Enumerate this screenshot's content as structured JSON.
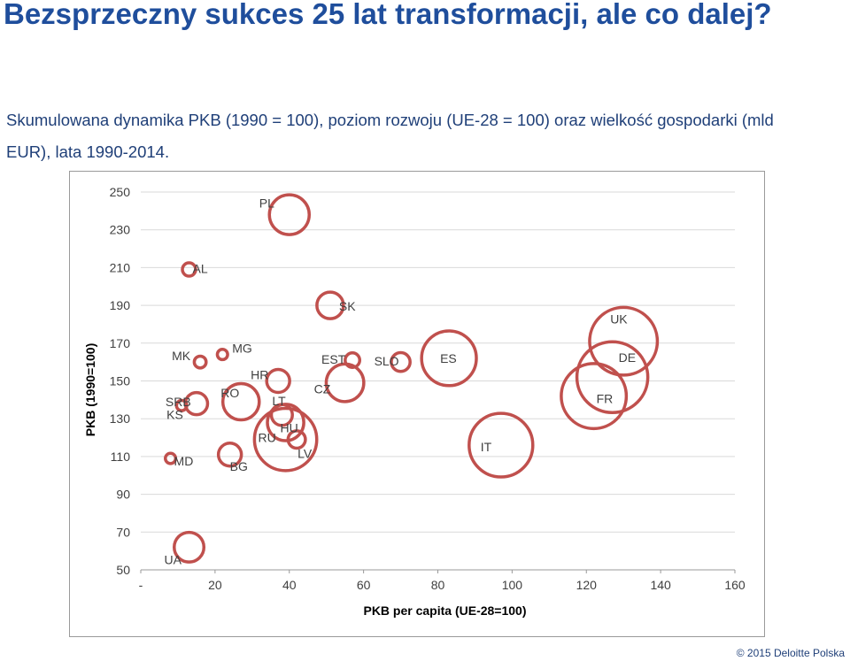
{
  "page": {
    "title": "Bezsprzeczny sukces 25 lat transformacji, ale co dalej?",
    "subtitle": "Skumulowana dynamika PKB (1990 = 100), poziom rozwoju (UE-28 = 100) oraz wielkość gospodarki (mld EUR), lata 1990-2014.",
    "footer": "© 2015 Deloitte Polska"
  },
  "chart_data": {
    "type": "bubble",
    "xlabel": "PKB per capita (UE-28=100)",
    "ylabel": "PKB (1990=100)",
    "xlim": [
      0,
      160
    ],
    "ylim": [
      50,
      250
    ],
    "x_ticks": [
      "-",
      "20",
      "40",
      "60",
      "80",
      "100",
      "120",
      "140",
      "160"
    ],
    "y_ticks": [
      "50",
      "70",
      "90",
      "110",
      "130",
      "150",
      "170",
      "190",
      "210",
      "230",
      "250"
    ],
    "grid": "horizontal",
    "colors": {
      "bubble": "#c0504d",
      "grid": "#d9d9d9",
      "axis": "#999999",
      "text": "#404040"
    },
    "points": [
      {
        "label": "PL",
        "x": 40,
        "y": 238,
        "size": 9.0
      },
      {
        "label": "AL",
        "x": 13,
        "y": 209,
        "size": 1.0
      },
      {
        "label": "SK",
        "x": 51,
        "y": 190,
        "size": 4.0
      },
      {
        "label": "UK",
        "x": 130,
        "y": 171,
        "size": 26.0
      },
      {
        "label": "DE",
        "x": 127,
        "y": 152,
        "size": 28.5
      },
      {
        "label": "FR",
        "x": 122,
        "y": 142,
        "size": 24.0
      },
      {
        "label": "MK",
        "x": 16,
        "y": 160,
        "size": 0.8
      },
      {
        "label": "MG",
        "x": 22,
        "y": 164,
        "size": 0.6
      },
      {
        "label": "EST",
        "x": 57,
        "y": 161,
        "size": 1.2
      },
      {
        "label": "SLO",
        "x": 70,
        "y": 160,
        "size": 2.0
      },
      {
        "label": "ES",
        "x": 83,
        "y": 162,
        "size": 17.0
      },
      {
        "label": "HR",
        "x": 37,
        "y": 150,
        "size": 3.0
      },
      {
        "label": "CZ",
        "x": 55,
        "y": 149,
        "size": 8.0
      },
      {
        "label": "RO",
        "x": 27,
        "y": 139,
        "size": 7.5
      },
      {
        "label": "SRB",
        "x": 15,
        "y": 138,
        "size": 2.8
      },
      {
        "label": "KS",
        "x": 11,
        "y": 137,
        "size": 0.6
      },
      {
        "label": "LT",
        "x": 38,
        "y": 132,
        "size": 2.5
      },
      {
        "label": "HU",
        "x": 39,
        "y": 128,
        "size": 7.5
      },
      {
        "label": "RU",
        "x": 39,
        "y": 119,
        "size": 22.0
      },
      {
        "label": "LV",
        "x": 42,
        "y": 119,
        "size": 1.7
      },
      {
        "label": "IT",
        "x": 97,
        "y": 116,
        "size": 23.0
      },
      {
        "label": "BG",
        "x": 24,
        "y": 111,
        "size": 3.0
      },
      {
        "label": "MD",
        "x": 8,
        "y": 109,
        "size": 0.6
      },
      {
        "label": "UA",
        "x": 13,
        "y": 62,
        "size": 5.0
      }
    ]
  }
}
